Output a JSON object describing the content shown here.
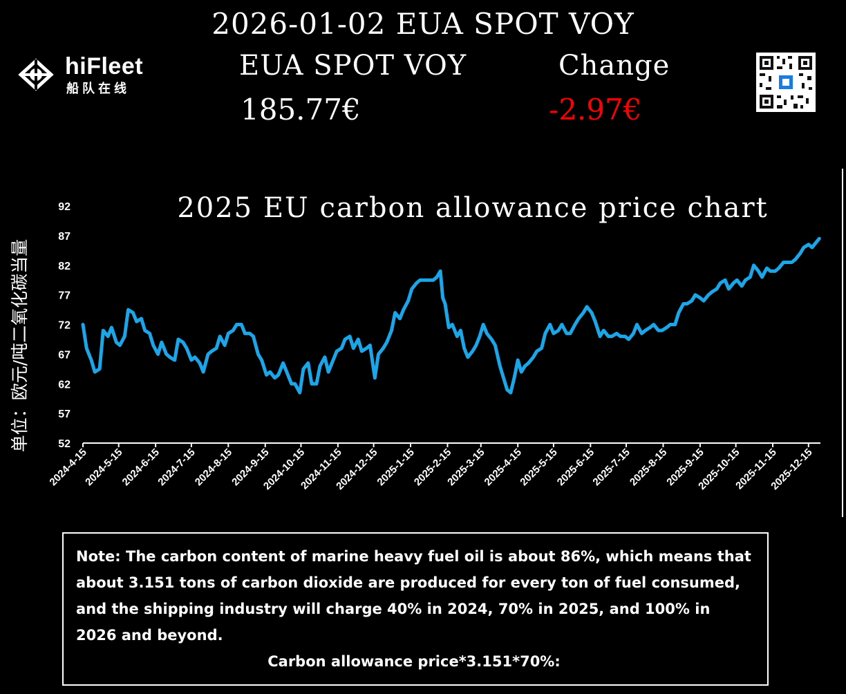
{
  "header": {
    "title": "2026-01-02 EUA SPOT VOY",
    "name_label": "EUA SPOT VOY",
    "change_label": "Change",
    "price": "185.77€",
    "change": "-2.97€",
    "change_color": "#ff0000"
  },
  "logo": {
    "brand": "hiFleet",
    "subtitle": "船队在线",
    "icon": "hifleet-logo-icon"
  },
  "qr": {
    "icon": "qr-code-icon"
  },
  "chart_data": {
    "type": "line",
    "title": "2025 EU carbon allowance price chart",
    "ylabel": "单位：欧元/吨二氧化碳当量",
    "xlabel": "",
    "ylim": [
      52,
      92
    ],
    "yticks": [
      "92",
      "87",
      "82",
      "77",
      "72",
      "67",
      "62",
      "57",
      "52"
    ],
    "xticks": [
      "2024-4-15",
      "2024-5-15",
      "2024-6-15",
      "2024-7-15",
      "2024-8-15",
      "2024-9-15",
      "2024-10-15",
      "2024-11-15",
      "2024-12-15",
      "2025-1-15",
      "2025-2-15",
      "2025-3-15",
      "2025-4-15",
      "2025-5-15",
      "2025-6-15",
      "2025-7-15",
      "2025-8-15",
      "2025-9-15",
      "2025-10-15",
      "2025-11-15",
      "2025-12-15"
    ],
    "line_color": "#1aa6e8",
    "series": [
      {
        "values": [
          [
            "2024-04-15",
            72
          ],
          [
            "2024-04-18",
            68
          ],
          [
            "2024-04-22",
            66
          ],
          [
            "2024-04-25",
            64
          ],
          [
            "2024-04-29",
            64.5
          ],
          [
            "2024-05-02",
            71
          ],
          [
            "2024-05-06",
            70
          ],
          [
            "2024-05-09",
            71.5
          ],
          [
            "2024-05-13",
            69
          ],
          [
            "2024-05-16",
            68.5
          ],
          [
            "2024-05-20",
            70
          ],
          [
            "2024-05-23",
            74.5
          ],
          [
            "2024-05-27",
            74
          ],
          [
            "2024-05-30",
            72.5
          ],
          [
            "2024-06-03",
            73
          ],
          [
            "2024-06-06",
            71
          ],
          [
            "2024-06-10",
            70.5
          ],
          [
            "2024-06-13",
            68.5
          ],
          [
            "2024-06-17",
            67
          ],
          [
            "2024-06-20",
            69
          ],
          [
            "2024-06-24",
            67
          ],
          [
            "2024-06-27",
            66.5
          ],
          [
            "2024-07-01",
            66
          ],
          [
            "2024-07-04",
            69.5
          ],
          [
            "2024-07-08",
            69
          ],
          [
            "2024-07-11",
            68
          ],
          [
            "2024-07-15",
            66
          ],
          [
            "2024-07-18",
            66.5
          ],
          [
            "2024-07-22",
            65.5
          ],
          [
            "2024-07-25",
            64
          ],
          [
            "2024-07-29",
            67
          ],
          [
            "2024-08-01",
            67.5
          ],
          [
            "2024-08-05",
            68
          ],
          [
            "2024-08-08",
            70
          ],
          [
            "2024-08-12",
            68.5
          ],
          [
            "2024-08-15",
            70.5
          ],
          [
            "2024-08-19",
            71
          ],
          [
            "2024-08-22",
            72
          ],
          [
            "2024-08-26",
            72
          ],
          [
            "2024-08-29",
            70.5
          ],
          [
            "2024-09-02",
            70.5
          ],
          [
            "2024-09-05",
            70
          ],
          [
            "2024-09-09",
            67
          ],
          [
            "2024-09-12",
            66
          ],
          [
            "2024-09-16",
            63.5
          ],
          [
            "2024-09-19",
            64
          ],
          [
            "2024-09-23",
            63
          ],
          [
            "2024-09-26",
            63.5
          ],
          [
            "2024-09-30",
            65.5
          ],
          [
            "2024-10-03",
            64
          ],
          [
            "2024-10-07",
            62
          ],
          [
            "2024-10-10",
            62
          ],
          [
            "2024-10-14",
            60.5
          ],
          [
            "2024-10-17",
            64.5
          ],
          [
            "2024-10-21",
            65.5
          ],
          [
            "2024-10-24",
            62
          ],
          [
            "2024-10-28",
            62
          ],
          [
            "2024-10-31",
            65
          ],
          [
            "2024-11-04",
            66.5
          ],
          [
            "2024-11-07",
            64
          ],
          [
            "2024-11-11",
            66
          ],
          [
            "2024-11-14",
            67.5
          ],
          [
            "2024-11-18",
            68
          ],
          [
            "2024-11-21",
            69.5
          ],
          [
            "2024-11-25",
            70
          ],
          [
            "2024-11-28",
            68
          ],
          [
            "2024-12-02",
            69.5
          ],
          [
            "2024-12-05",
            67.5
          ],
          [
            "2024-12-09",
            68
          ],
          [
            "2024-12-12",
            68.5
          ],
          [
            "2024-12-16",
            63
          ],
          [
            "2024-12-19",
            67
          ],
          [
            "2024-12-23",
            68
          ],
          [
            "2024-12-26",
            69
          ],
          [
            "2024-12-30",
            71
          ],
          [
            "2025-01-02",
            74
          ],
          [
            "2025-01-06",
            73
          ],
          [
            "2025-01-09",
            74.5
          ],
          [
            "2025-01-13",
            76
          ],
          [
            "2025-01-16",
            78
          ],
          [
            "2025-01-20",
            79
          ],
          [
            "2025-01-23",
            79.5
          ],
          [
            "2025-01-27",
            79.5
          ],
          [
            "2025-01-30",
            79.5
          ],
          [
            "2025-02-03",
            79.5
          ],
          [
            "2025-02-06",
            80
          ],
          [
            "2025-02-09",
            81
          ],
          [
            "2025-02-11",
            76.5
          ],
          [
            "2025-02-13",
            75.5
          ],
          [
            "2025-02-16",
            71.5
          ],
          [
            "2025-02-19",
            72
          ],
          [
            "2025-02-23",
            70
          ],
          [
            "2025-02-26",
            71
          ],
          [
            "2025-03-01",
            68
          ],
          [
            "2025-03-04",
            66.5
          ],
          [
            "2025-03-08",
            67.5
          ],
          [
            "2025-03-11",
            68.5
          ],
          [
            "2025-03-14",
            70
          ],
          [
            "2025-03-17",
            72
          ],
          [
            "2025-03-20",
            70.5
          ],
          [
            "2025-03-24",
            69.5
          ],
          [
            "2025-03-27",
            68.5
          ],
          [
            "2025-03-31",
            65
          ],
          [
            "2025-04-03",
            63
          ],
          [
            "2025-04-06",
            61
          ],
          [
            "2025-04-09",
            60.5
          ],
          [
            "2025-04-12",
            63
          ],
          [
            "2025-04-15",
            66
          ],
          [
            "2025-04-18",
            64
          ],
          [
            "2025-04-21",
            65
          ],
          [
            "2025-04-24",
            65.5
          ],
          [
            "2025-04-28",
            66.5
          ],
          [
            "2025-05-01",
            67.5
          ],
          [
            "2025-05-05",
            68
          ],
          [
            "2025-05-08",
            70.5
          ],
          [
            "2025-05-12",
            72
          ],
          [
            "2025-05-15",
            70.5
          ],
          [
            "2025-05-19",
            71
          ],
          [
            "2025-05-22",
            72
          ],
          [
            "2025-05-26",
            70.5
          ],
          [
            "2025-05-29",
            70.5
          ],
          [
            "2025-06-02",
            72
          ],
          [
            "2025-06-05",
            73
          ],
          [
            "2025-06-09",
            74
          ],
          [
            "2025-06-12",
            75
          ],
          [
            "2025-06-16",
            74
          ],
          [
            "2025-06-19",
            72.5
          ],
          [
            "2025-06-23",
            70
          ],
          [
            "2025-06-26",
            71
          ],
          [
            "2025-06-30",
            70
          ],
          [
            "2025-07-03",
            70
          ],
          [
            "2025-07-07",
            70.5
          ],
          [
            "2025-07-10",
            70
          ],
          [
            "2025-07-14",
            70
          ],
          [
            "2025-07-17",
            69.5
          ],
          [
            "2025-07-21",
            70.5
          ],
          [
            "2025-07-24",
            72
          ],
          [
            "2025-07-28",
            70.5
          ],
          [
            "2025-07-31",
            71
          ],
          [
            "2025-08-04",
            71.5
          ],
          [
            "2025-08-07",
            72
          ],
          [
            "2025-08-11",
            71
          ],
          [
            "2025-08-14",
            71
          ],
          [
            "2025-08-18",
            71.5
          ],
          [
            "2025-08-21",
            72
          ],
          [
            "2025-08-25",
            72
          ],
          [
            "2025-08-28",
            74
          ],
          [
            "2025-09-01",
            75.5
          ],
          [
            "2025-09-04",
            75.5
          ],
          [
            "2025-09-08",
            76
          ],
          [
            "2025-09-11",
            77
          ],
          [
            "2025-09-15",
            76.5
          ],
          [
            "2025-09-18",
            76
          ],
          [
            "2025-09-22",
            77
          ],
          [
            "2025-09-25",
            77.5
          ],
          [
            "2025-09-29",
            78
          ],
          [
            "2025-10-02",
            79
          ],
          [
            "2025-10-06",
            79.5
          ],
          [
            "2025-10-09",
            78
          ],
          [
            "2025-10-13",
            79
          ],
          [
            "2025-10-16",
            79.5
          ],
          [
            "2025-10-20",
            78.5
          ],
          [
            "2025-10-23",
            79.5
          ],
          [
            "2025-10-27",
            80
          ],
          [
            "2025-10-30",
            82
          ],
          [
            "2025-11-03",
            81
          ],
          [
            "2025-11-06",
            80
          ],
          [
            "2025-11-10",
            81.5
          ],
          [
            "2025-11-13",
            81
          ],
          [
            "2025-11-17",
            81
          ],
          [
            "2025-11-20",
            81.5
          ],
          [
            "2025-11-24",
            82.5
          ],
          [
            "2025-11-27",
            82.5
          ],
          [
            "2025-12-01",
            82.5
          ],
          [
            "2025-12-04",
            83
          ],
          [
            "2025-12-08",
            84
          ],
          [
            "2025-12-11",
            85
          ],
          [
            "2025-12-15",
            85.5
          ],
          [
            "2025-12-18",
            85
          ],
          [
            "2025-12-22",
            86
          ],
          [
            "2025-12-24",
            86.5
          ]
        ]
      }
    ]
  },
  "note": {
    "text": "Note: The carbon content of marine heavy fuel oil is about 86%, which means that about 3.151 tons of carbon dioxide are produced for every ton of fuel consumed, and the shipping industry will charge 40% in 2024, 70% in 2025, and 100% in 2026 and beyond.",
    "formula": "Carbon allowance price*3.151*70%:"
  }
}
